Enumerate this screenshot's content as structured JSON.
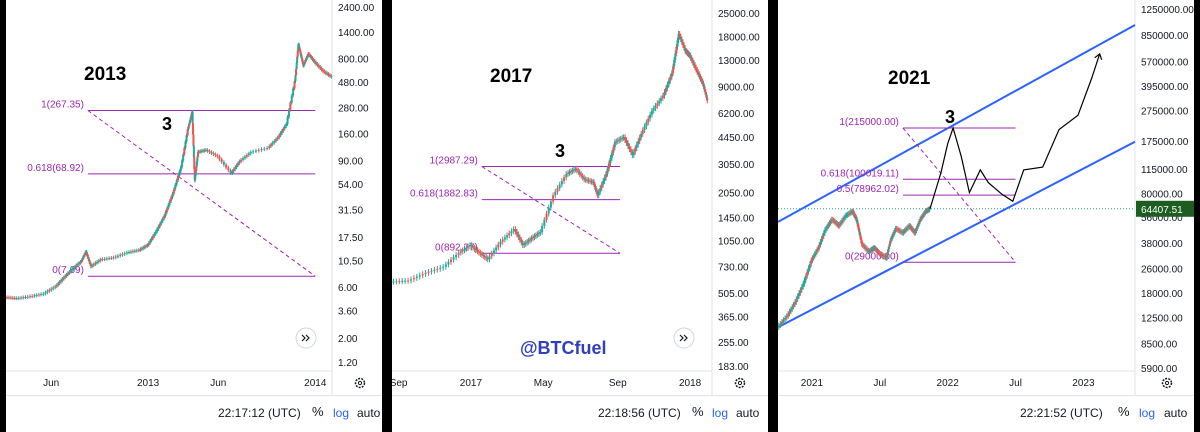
{
  "chart_data": [
    {
      "type": "line",
      "year_label": "2013",
      "wave_label": "3",
      "log_scale": true,
      "y_ticks": [
        1.2,
        2.0,
        3.6,
        6.0,
        10.5,
        17.5,
        31.5,
        54.0,
        90.0,
        160.0,
        280.0,
        480.0,
        800.0,
        1400.0,
        2400.0
      ],
      "y_tick_labels": [
        "1.20",
        "2.00",
        "3.60",
        "6.00",
        "10.50",
        "17.50",
        "31.50",
        "54.00",
        "90.00",
        "160.00",
        "280.00",
        "480.00",
        "800.00",
        "1400.00",
        "2400.00"
      ],
      "x_ticks": [
        {
          "label": "Jun",
          "x": 2012.42
        },
        {
          "label": "2013",
          "x": 2013.0
        },
        {
          "label": "Jun",
          "x": 2013.42
        },
        {
          "label": "2014",
          "x": 2014.0
        }
      ],
      "xlim": [
        2012.15,
        2014.1
      ],
      "fib_levels": [
        {
          "label": "1(267.35)",
          "value": 267.35
        },
        {
          "label": "0.618(68.92)",
          "value": 68.92
        },
        {
          "label": "0(7.69)",
          "value": 7.69
        }
      ],
      "fib_x_range": [
        2012.64,
        2014.0
      ],
      "retrace_line": {
        "from": [
          2012.64,
          267.35
        ],
        "to": [
          2014.0,
          7.69
        ]
      },
      "price_path": [
        [
          2012.15,
          4.9
        ],
        [
          2012.22,
          4.8
        ],
        [
          2012.3,
          5.0
        ],
        [
          2012.38,
          5.3
        ],
        [
          2012.45,
          6.2
        ],
        [
          2012.5,
          7.5
        ],
        [
          2012.55,
          9.0
        ],
        [
          2012.6,
          10.5
        ],
        [
          2012.63,
          13.0
        ],
        [
          2012.66,
          9.5
        ],
        [
          2012.72,
          11.0
        ],
        [
          2012.8,
          11.5
        ],
        [
          2012.88,
          12.8
        ],
        [
          2012.95,
          13.5
        ],
        [
          2013.0,
          15.0
        ],
        [
          2013.05,
          20
        ],
        [
          2013.1,
          28
        ],
        [
          2013.15,
          45
        ],
        [
          2013.2,
          80
        ],
        [
          2013.24,
          180
        ],
        [
          2013.265,
          260
        ],
        [
          2013.28,
          60
        ],
        [
          2013.3,
          110
        ],
        [
          2013.35,
          115
        ],
        [
          2013.42,
          100
        ],
        [
          2013.5,
          70
        ],
        [
          2013.55,
          90
        ],
        [
          2013.62,
          110
        ],
        [
          2013.72,
          120
        ],
        [
          2013.78,
          150
        ],
        [
          2013.83,
          200
        ],
        [
          2013.88,
          500
        ],
        [
          2013.9,
          1100
        ],
        [
          2013.93,
          700
        ],
        [
          2013.96,
          900
        ],
        [
          2014.0,
          750
        ],
        [
          2014.05,
          620
        ],
        [
          2014.1,
          550
        ]
      ],
      "time": "22:17:12 (UTC)"
    },
    {
      "type": "line",
      "year_label": "2017",
      "wave_label": "3",
      "log_scale": true,
      "y_ticks": [
        183,
        255,
        365,
        505,
        730,
        1050,
        1450,
        2050,
        3050,
        4450,
        6200,
        9000,
        13000,
        18000,
        25000
      ],
      "y_tick_labels": [
        "183.00",
        "255.00",
        "365.00",
        "505.00",
        "730.00",
        "1050.00",
        "1450.00",
        "2050.00",
        "3050.00",
        "4450.00",
        "6200.00",
        "9000.00",
        "13000.00",
        "18000.00",
        "25000.00"
      ],
      "x_ticks": [
        {
          "label": "Sep",
          "x": 2016.67
        },
        {
          "label": "2017",
          "x": 2017.0
        },
        {
          "label": "May",
          "x": 2017.33
        },
        {
          "label": "Sep",
          "x": 2017.67
        },
        {
          "label": "2018",
          "x": 2018.0
        }
      ],
      "xlim": [
        2016.64,
        2018.1
      ],
      "fib_levels": [
        {
          "label": "1(2987.29)",
          "value": 2987.29
        },
        {
          "label": "0.618(1882.83)",
          "value": 1882.83
        },
        {
          "label": "0(892.27)",
          "value": 892.27
        }
      ],
      "fib_x_range": [
        2017.05,
        2017.68
      ],
      "retrace_line": {
        "from": [
          2017.05,
          2987.29
        ],
        "to": [
          2017.68,
          892.27
        ]
      },
      "price_path": [
        [
          2016.64,
          600
        ],
        [
          2016.72,
          610
        ],
        [
          2016.8,
          680
        ],
        [
          2016.88,
          740
        ],
        [
          2016.95,
          900
        ],
        [
          2017.0,
          1000
        ],
        [
          2017.04,
          900
        ],
        [
          2017.08,
          820
        ],
        [
          2017.14,
          1050
        ],
        [
          2017.2,
          1250
        ],
        [
          2017.24,
          1000
        ],
        [
          2017.28,
          1100
        ],
        [
          2017.32,
          1200
        ],
        [
          2017.38,
          2000
        ],
        [
          2017.44,
          2700
        ],
        [
          2017.48,
          2900
        ],
        [
          2017.52,
          2500
        ],
        [
          2017.56,
          2400
        ],
        [
          2017.58,
          2000
        ],
        [
          2017.62,
          2700
        ],
        [
          2017.66,
          4200
        ],
        [
          2017.7,
          4500
        ],
        [
          2017.74,
          3500
        ],
        [
          2017.78,
          4700
        ],
        [
          2017.83,
          6500
        ],
        [
          2017.88,
          8000
        ],
        [
          2017.92,
          11000
        ],
        [
          2017.95,
          19000
        ],
        [
          2017.98,
          15000
        ],
        [
          2018.0,
          14000
        ],
        [
          2018.03,
          11500
        ],
        [
          2018.06,
          9500
        ],
        [
          2018.08,
          7500
        ]
      ],
      "time": "22:18:56 (UTC)",
      "credit": "@BTCfuel"
    },
    {
      "type": "line",
      "year_label": "2021",
      "wave_label": "3",
      "log_scale": true,
      "y_ticks": [
        5900,
        8500,
        12500,
        18000,
        26000,
        38000,
        56000,
        80000,
        115000,
        175000,
        275000,
        395000,
        570000,
        850000,
        1250000
      ],
      "y_tick_labels": [
        "5900.00",
        "8500.00",
        "12500.00",
        "18000.00",
        "26000.00",
        "38000.00",
        "56000.00",
        "80000.00",
        "115000.00",
        "175000.00",
        "275000.00",
        "395000.00",
        "570000.00",
        "850000.00",
        "1250000.00"
      ],
      "x_ticks": [
        {
          "label": "2021",
          "x": 2021.0
        },
        {
          "label": "Jul",
          "x": 2021.5
        },
        {
          "label": "2022",
          "x": 2022.0
        },
        {
          "label": "Jul",
          "x": 2022.5
        },
        {
          "label": "2023",
          "x": 2023.0
        }
      ],
      "xlim": [
        2020.75,
        2023.38
      ],
      "fib_levels": [
        {
          "label": "1(215000.00)",
          "value": 215000
        },
        {
          "label": "0.618(100019.11)",
          "value": 100019.11
        },
        {
          "label": "0.5(78962.02)",
          "value": 78962.02
        },
        {
          "label": "0(29000.00)",
          "value": 29000
        }
      ],
      "fib_x_range": [
        2021.67,
        2022.5
      ],
      "retrace_line": {
        "from": [
          2021.67,
          215000
        ],
        "to": [
          2022.5,
          29000
        ]
      },
      "channel_lines": [
        {
          "from": [
            2020.75,
            53000
          ],
          "to": [
            2023.38,
            1000000
          ]
        },
        {
          "from": [
            2020.75,
            11000
          ],
          "to": [
            2023.38,
            175000
          ]
        }
      ],
      "price_path": [
        [
          2020.75,
          11000
        ],
        [
          2020.82,
          13000
        ],
        [
          2020.88,
          16000
        ],
        [
          2020.94,
          21000
        ],
        [
          2021.0,
          30000
        ],
        [
          2021.05,
          36000
        ],
        [
          2021.1,
          47000
        ],
        [
          2021.15,
          55000
        ],
        [
          2021.2,
          50000
        ],
        [
          2021.25,
          58000
        ],
        [
          2021.3,
          62000
        ],
        [
          2021.33,
          55000
        ],
        [
          2021.37,
          38000
        ],
        [
          2021.42,
          34000
        ],
        [
          2021.46,
          36000
        ],
        [
          2021.5,
          33000
        ],
        [
          2021.55,
          31000
        ],
        [
          2021.58,
          40000
        ],
        [
          2021.62,
          48000
        ],
        [
          2021.67,
          45000
        ],
        [
          2021.72,
          50000
        ],
        [
          2021.76,
          45000
        ],
        [
          2021.8,
          55000
        ],
        [
          2021.84,
          62000
        ],
        [
          2021.87,
          64407.51
        ]
      ],
      "projection_path": [
        [
          2021.87,
          64407.51
        ],
        [
          2021.95,
          110000
        ],
        [
          2022.0,
          170000
        ],
        [
          2022.04,
          215000
        ],
        [
          2022.1,
          140000
        ],
        [
          2022.16,
          82000
        ],
        [
          2022.24,
          115000
        ],
        [
          2022.3,
          95000
        ],
        [
          2022.4,
          80000
        ],
        [
          2022.48,
          72000
        ],
        [
          2022.56,
          115000
        ],
        [
          2022.7,
          120000
        ],
        [
          2022.82,
          210000
        ],
        [
          2022.96,
          260000
        ],
        [
          2023.06,
          450000
        ],
        [
          2023.12,
          650000
        ]
      ],
      "current_price": "64407.51",
      "time": "22:21:52 (UTC)"
    }
  ],
  "footer": {
    "percent": "%",
    "log": "log",
    "auto": "auto"
  },
  "colors": {
    "up": "#26a69a",
    "down": "#ef5350",
    "fib": "#9c27b0",
    "channel": "#2962ff",
    "pricebox": "#1b5e20",
    "credit": "#2f3fbe"
  }
}
